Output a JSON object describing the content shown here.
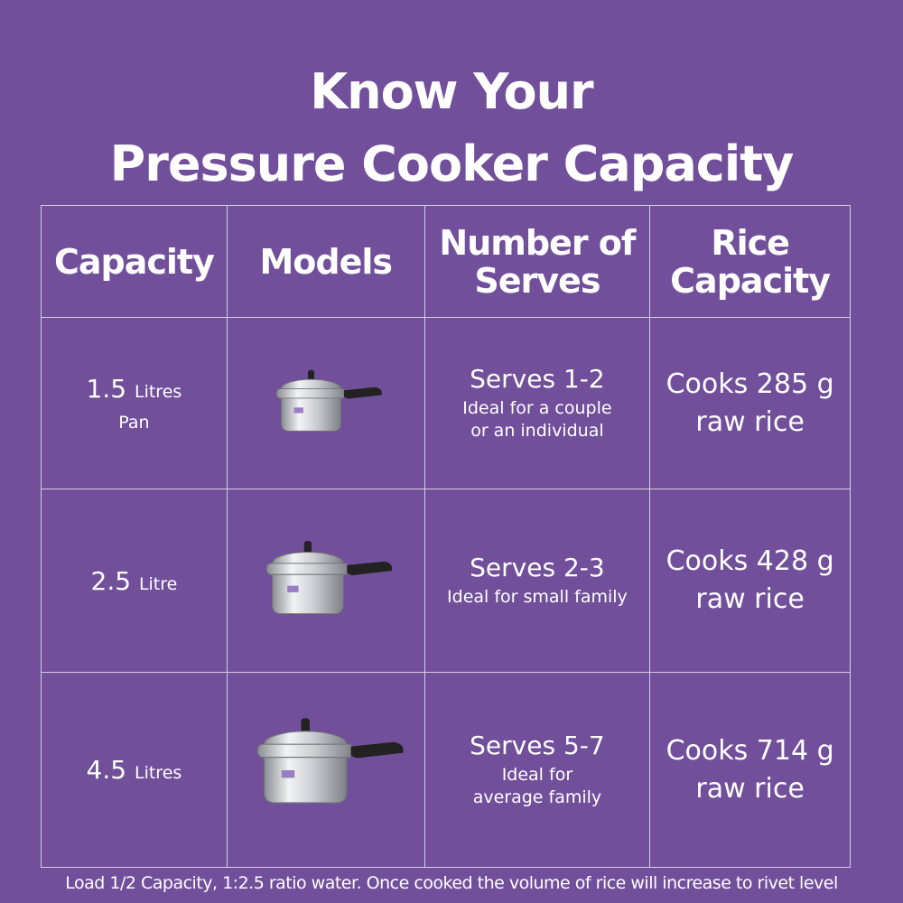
{
  "title": {
    "line1": "Know Your",
    "line2": "Pressure Cooker Capacity"
  },
  "headers": [
    "Capacity",
    "Models",
    "Number of Serves",
    "Rice Capacity"
  ],
  "rows": [
    {
      "capacity": "1.5",
      "unit": "Litres",
      "sub": "Pan",
      "model_icon": "pressure-cooker-small",
      "serves": "Serves 1-2",
      "serves_desc": "Ideal for a couple or an individual",
      "rice1": "Cooks 285 g",
      "rice2": "raw rice"
    },
    {
      "capacity": "2.5",
      "unit": "Litre",
      "sub": "",
      "model_icon": "pressure-cooker-medium",
      "serves": "Serves 2-3",
      "serves_desc": "Ideal for small family",
      "rice1": "Cooks 428 g",
      "rice2": "raw rice"
    },
    {
      "capacity": "4.5",
      "unit": "Litres",
      "sub": "",
      "model_icon": "pressure-cooker-large",
      "serves": "Serves 5-7",
      "serves_desc": "Ideal for average family",
      "rice1": "Cooks 714 g",
      "rice2": "raw rice"
    }
  ],
  "footer": "Load 1/2 Capacity, 1:2.5 ratio water. Once cooked the volume of rice will increase to rivet level",
  "colors": {
    "background": "#714f9b",
    "text": "#ffffff"
  }
}
